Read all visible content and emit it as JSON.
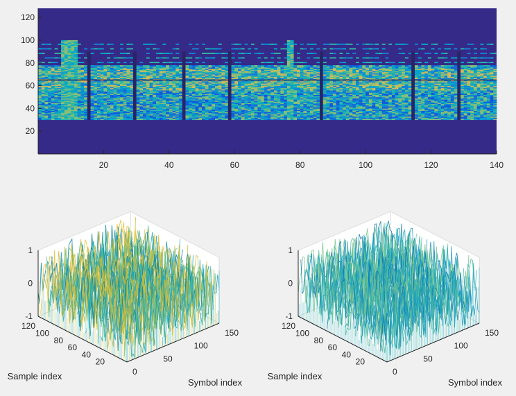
{
  "figure": {
    "background": "#f0f0f0"
  },
  "chart_data": [
    {
      "type": "heatmap",
      "title": "",
      "xlabel": "",
      "ylabel": "",
      "xlim": [
        0,
        140
      ],
      "ylim": [
        0,
        128
      ],
      "x_ticks": [
        20,
        40,
        60,
        80,
        100,
        120,
        140
      ],
      "y_ticks": [
        20,
        40,
        60,
        80,
        100,
        120
      ],
      "signal_band_rows": [
        30,
        100
      ],
      "dense_band_rows": [
        30,
        78
      ],
      "reference_row": 65,
      "bright_columns": [
        7,
        8,
        9,
        10,
        11,
        76,
        77
      ],
      "dark_gap_columns": [
        15,
        29,
        44,
        58,
        86,
        114,
        128
      ],
      "colormap": [
        "#352a87",
        "#0f5cdd",
        "#1481d6",
        "#06a4ca",
        "#2eb7a4",
        "#87bf77",
        "#d1bb59",
        "#fec832",
        "#f9fb0e"
      ],
      "background_color": "#352a87"
    },
    {
      "type": "surface",
      "xlabel": "Sample index",
      "ylabel": "Symbol index",
      "x_ticks": [
        20,
        40,
        60,
        80,
        100,
        120
      ],
      "y_ticks": [
        0,
        50,
        100,
        150
      ],
      "z_ticks": [
        -1,
        0,
        1
      ],
      "xlim": [
        0,
        128
      ],
      "ylim": [
        0,
        150
      ],
      "zlim": [
        -1,
        1
      ],
      "colors": [
        "#1aa8b8",
        "#5cbd8a",
        "#c7bb3b",
        "#e4c030",
        "#12889e"
      ]
    },
    {
      "type": "surface",
      "xlabel": "Sample index",
      "ylabel": "Symbol index",
      "x_ticks": [
        20,
        40,
        60,
        80,
        100,
        120
      ],
      "y_ticks": [
        0,
        50,
        100,
        150
      ],
      "z_ticks": [
        -1,
        0,
        1
      ],
      "xlim": [
        0,
        128
      ],
      "ylim": [
        0,
        150
      ],
      "zlim": [
        -1,
        1
      ],
      "colors": [
        "#139ac2",
        "#2aaeb6",
        "#4cbca0",
        "#0d7fb0",
        "#7cc58c"
      ]
    }
  ]
}
